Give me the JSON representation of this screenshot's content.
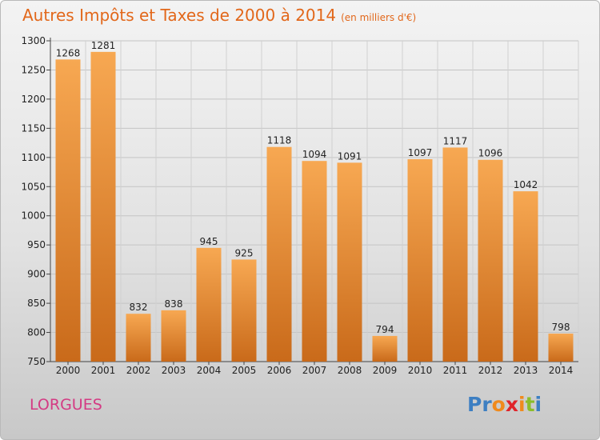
{
  "title": "Autres Impôts et Taxes de 2000 à 2014",
  "subtitle": "(en milliers d'€)",
  "commune": "LORGUES",
  "logo": {
    "letters": [
      "P",
      "r",
      "o",
      "x",
      "i",
      "t",
      "i"
    ],
    "colors": [
      "#3d7fc2",
      "#3d7fc2",
      "#f08a1c",
      "#e0242a",
      "#f08a1c",
      "#8bbd2a",
      "#3d7fc2"
    ]
  },
  "colors": {
    "bar_top": "#f7a852",
    "bar_bottom": "#c96a1a",
    "title": "#e2671a",
    "commune": "#d43a83"
  },
  "chart_data": {
    "type": "bar",
    "title": "Autres Impôts et Taxes de 2000 à 2014",
    "subtitle": "(en milliers d'€)",
    "categories": [
      "2000",
      "2001",
      "2002",
      "2003",
      "2004",
      "2005",
      "2006",
      "2007",
      "2008",
      "2009",
      "2010",
      "2011",
      "2012",
      "2013",
      "2014"
    ],
    "values": [
      1268,
      1281,
      832,
      838,
      945,
      925,
      1118,
      1094,
      1091,
      794,
      1097,
      1117,
      1096,
      1042,
      798
    ],
    "ylim": [
      750,
      1300
    ],
    "yticks": [
      750,
      800,
      850,
      900,
      950,
      1000,
      1050,
      1100,
      1150,
      1200,
      1250,
      1300
    ],
    "grid": true,
    "data_labels": true
  }
}
